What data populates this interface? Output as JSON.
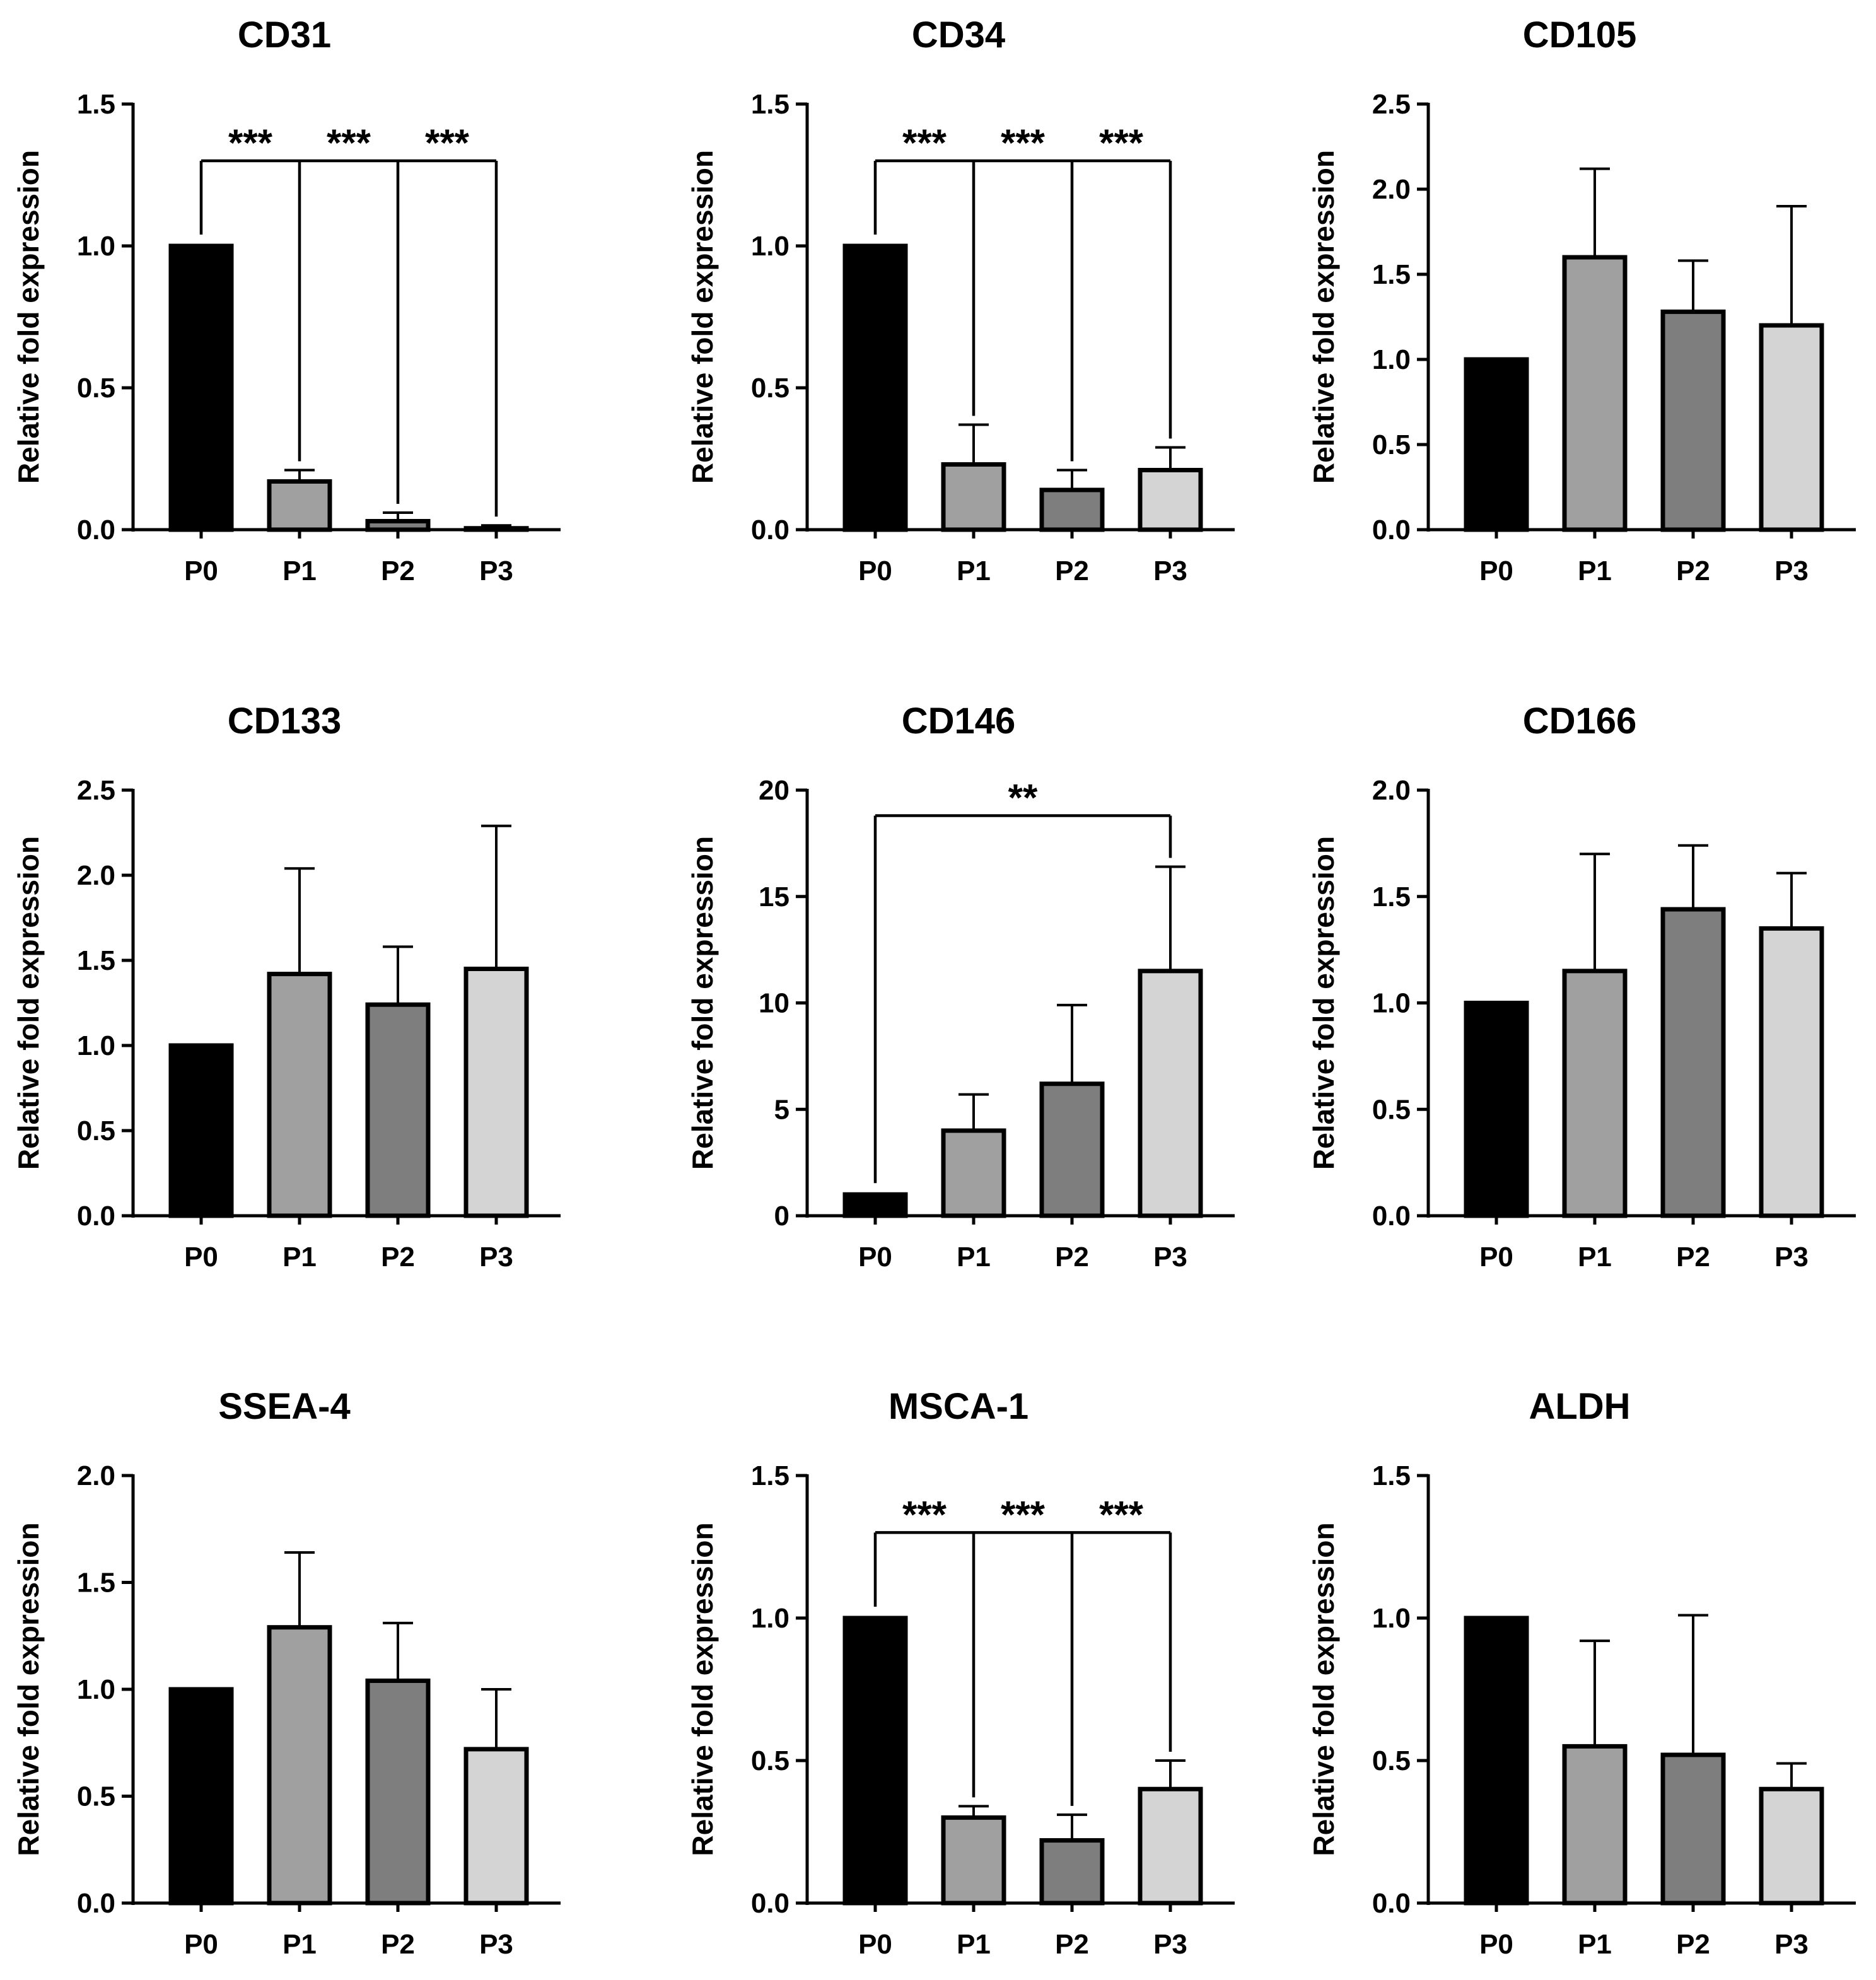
{
  "figure": {
    "panels_per_row": 3,
    "colors": {
      "P0": "#000000",
      "P1": "#a0a0a0",
      "P2": "#7e7e7e",
      "P3": "#d4d4d4",
      "stroke": "#000000"
    }
  },
  "chart_data": [
    {
      "type": "bar",
      "title": "CD31",
      "ylabel": "Relative fold expression",
      "xlabel": "",
      "categories": [
        "P0",
        "P1",
        "P2",
        "P3"
      ],
      "values": [
        1.0,
        0.17,
        0.03,
        0.005
      ],
      "errors": [
        0,
        0.04,
        0.03,
        0.01
      ],
      "ylim": [
        0,
        1.5
      ],
      "yticks": [
        "0.0",
        "0.5",
        "1.0",
        "1.5"
      ],
      "ytick_values": [
        0,
        0.5,
        1.0,
        1.5
      ],
      "significance": {
        "type": "multi",
        "y": 1.3,
        "pairs": [
          [
            0,
            1
          ],
          [
            0,
            2
          ],
          [
            0,
            3
          ]
        ],
        "labels": [
          "***",
          "***",
          "***"
        ]
      }
    },
    {
      "type": "bar",
      "title": "CD34",
      "ylabel": "Relative fold expression",
      "xlabel": "",
      "categories": [
        "P0",
        "P1",
        "P2",
        "P3"
      ],
      "values": [
        1.0,
        0.23,
        0.14,
        0.21
      ],
      "errors": [
        0,
        0.14,
        0.07,
        0.08
      ],
      "ylim": [
        0,
        1.5
      ],
      "yticks": [
        "0.0",
        "0.5",
        "1.0",
        "1.5"
      ],
      "ytick_values": [
        0,
        0.5,
        1.0,
        1.5
      ],
      "significance": {
        "type": "multi",
        "y": 1.3,
        "pairs": [
          [
            0,
            1
          ],
          [
            0,
            2
          ],
          [
            0,
            3
          ]
        ],
        "labels": [
          "***",
          "***",
          "***"
        ]
      }
    },
    {
      "type": "bar",
      "title": "CD105",
      "ylabel": "Relative fold expression",
      "xlabel": "",
      "categories": [
        "P0",
        "P1",
        "P2",
        "P3"
      ],
      "values": [
        1.0,
        1.6,
        1.28,
        1.2
      ],
      "errors": [
        0,
        0.52,
        0.3,
        0.7
      ],
      "ylim": [
        0,
        2.5
      ],
      "yticks": [
        "0.0",
        "0.5",
        "1.0",
        "1.5",
        "2.0",
        "2.5"
      ],
      "ytick_values": [
        0,
        0.5,
        1.0,
        1.5,
        2.0,
        2.5
      ],
      "significance": null
    },
    {
      "type": "bar",
      "title": "CD133",
      "ylabel": "Relative fold expression",
      "xlabel": "",
      "categories": [
        "P0",
        "P1",
        "P2",
        "P3"
      ],
      "values": [
        1.0,
        1.42,
        1.24,
        1.45
      ],
      "errors": [
        0,
        0.62,
        0.34,
        0.84
      ],
      "ylim": [
        0,
        2.5
      ],
      "yticks": [
        "0.0",
        "0.5",
        "1.0",
        "1.5",
        "2.0",
        "2.5"
      ],
      "ytick_values": [
        0,
        0.5,
        1.0,
        1.5,
        2.0,
        2.5
      ],
      "significance": null
    },
    {
      "type": "bar",
      "title": "CD146",
      "ylabel": "Relative fold expression",
      "xlabel": "",
      "categories": [
        "P0",
        "P1",
        "P2",
        "P3"
      ],
      "values": [
        1.0,
        4.0,
        6.2,
        11.5
      ],
      "errors": [
        0,
        1.7,
        3.7,
        4.9
      ],
      "ylim": [
        0,
        20
      ],
      "yticks": [
        "0",
        "5",
        "10",
        "15",
        "20"
      ],
      "ytick_values": [
        0,
        5,
        10,
        15,
        20
      ],
      "significance": {
        "type": "single",
        "y": 18.8,
        "pairs": [
          [
            0,
            3
          ]
        ],
        "labels": [
          "**"
        ]
      }
    },
    {
      "type": "bar",
      "title": "CD166",
      "ylabel": "Relative fold expression",
      "xlabel": "",
      "categories": [
        "P0",
        "P1",
        "P2",
        "P3"
      ],
      "values": [
        1.0,
        1.15,
        1.44,
        1.35
      ],
      "errors": [
        0,
        0.55,
        0.3,
        0.26
      ],
      "ylim": [
        0,
        2.0
      ],
      "yticks": [
        "0.0",
        "0.5",
        "1.0",
        "1.5",
        "2.0"
      ],
      "ytick_values": [
        0,
        0.5,
        1.0,
        1.5,
        2.0
      ],
      "significance": null
    },
    {
      "type": "bar",
      "title": "SSEA-4",
      "ylabel": "Relative fold expression",
      "xlabel": "",
      "categories": [
        "P0",
        "P1",
        "P2",
        "P3"
      ],
      "values": [
        1.0,
        1.29,
        1.04,
        0.72
      ],
      "errors": [
        0,
        0.35,
        0.27,
        0.28
      ],
      "ylim": [
        0,
        2.0
      ],
      "yticks": [
        "0.0",
        "0.5",
        "1.0",
        "1.5",
        "2.0"
      ],
      "ytick_values": [
        0,
        0.5,
        1.0,
        1.5,
        2.0
      ],
      "significance": null
    },
    {
      "type": "bar",
      "title": "MSCA-1",
      "ylabel": "Relative fold expression",
      "xlabel": "",
      "categories": [
        "P0",
        "P1",
        "P2",
        "P3"
      ],
      "values": [
        1.0,
        0.3,
        0.22,
        0.4
      ],
      "errors": [
        0,
        0.04,
        0.09,
        0.1
      ],
      "ylim": [
        0,
        1.5
      ],
      "yticks": [
        "0.0",
        "0.5",
        "1.0",
        "1.5"
      ],
      "ytick_values": [
        0,
        0.5,
        1.0,
        1.5
      ],
      "significance": {
        "type": "multi",
        "y": 1.3,
        "pairs": [
          [
            0,
            1
          ],
          [
            0,
            2
          ],
          [
            0,
            3
          ]
        ],
        "labels": [
          "***",
          "***",
          "***"
        ]
      }
    },
    {
      "type": "bar",
      "title": "ALDH",
      "ylabel": "Relative fold expression",
      "xlabel": "",
      "categories": [
        "P0",
        "P1",
        "P2",
        "P3"
      ],
      "values": [
        1.0,
        0.55,
        0.52,
        0.4
      ],
      "errors": [
        0,
        0.37,
        0.49,
        0.09
      ],
      "ylim": [
        0,
        1.5
      ],
      "yticks": [
        "0.0",
        "0.5",
        "1.0",
        "1.5"
      ],
      "ytick_values": [
        0,
        0.5,
        1.0,
        1.5
      ],
      "significance": null
    }
  ]
}
